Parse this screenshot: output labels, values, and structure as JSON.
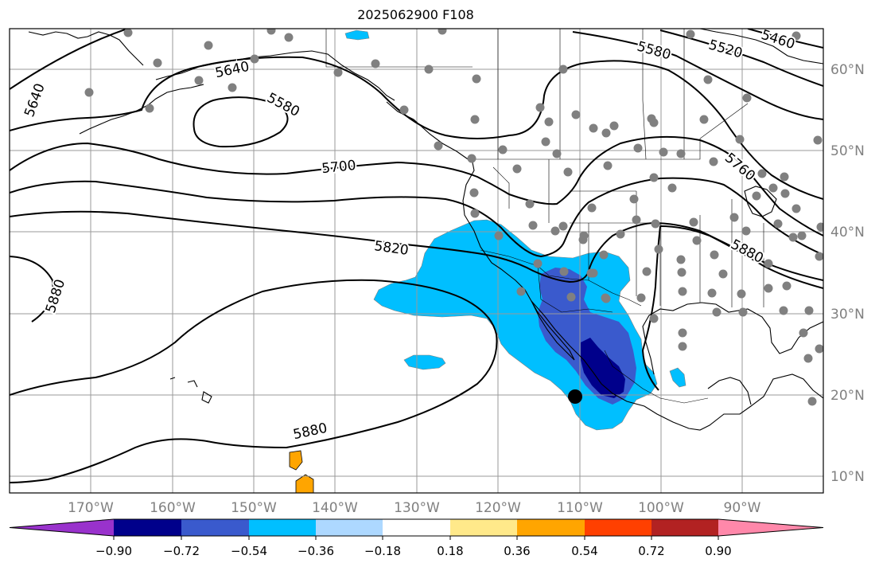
{
  "title": "2025062900 F108",
  "lon_labels": [
    "170°W",
    "160°W",
    "150°W",
    "140°W",
    "130°W",
    "120°W",
    "110°W",
    "100°W",
    "90°W"
  ],
  "lat_labels": [
    "60°N",
    "50°N",
    "40°N",
    "30°N",
    "20°N",
    "10°N"
  ],
  "contour_labels": [
    "5640",
    "5640",
    "5580",
    "5580",
    "5520",
    "5460",
    "5700",
    "5760",
    "5820",
    "5880",
    "5880",
    "5880"
  ],
  "colorbar": {
    "tick_labels": [
      "−0.90",
      "−0.72",
      "−0.54",
      "−0.36",
      "−0.18",
      "0.18",
      "0.36",
      "0.54",
      "0.72",
      "0.90"
    ],
    "colors": [
      "#9932cc",
      "#00008b",
      "#3a5acd",
      "#00bfff",
      "#add8ff",
      "#ffffff",
      "#ffe98a",
      "#ffa500",
      "#ff4000",
      "#b22222",
      "#ff88aa"
    ]
  },
  "colors": {
    "station": "#808080",
    "marker": "#000000",
    "land_line": "#000000",
    "grid": "#9a9a9a",
    "axis_label": "#808080"
  }
}
